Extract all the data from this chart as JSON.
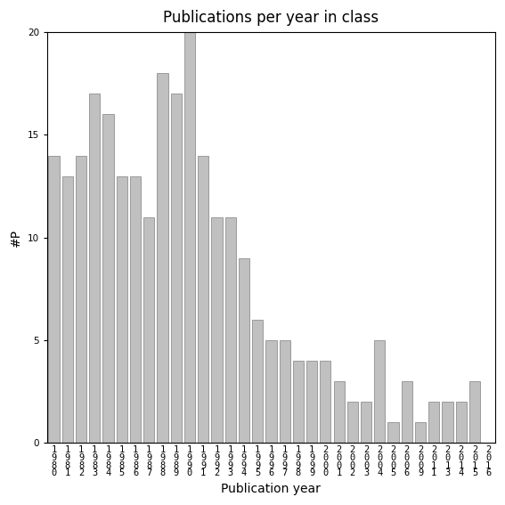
{
  "title": "Publications per year in class",
  "xlabel": "Publication year",
  "ylabel": "#P",
  "ylim": [
    0,
    20
  ],
  "yticks": [
    0,
    5,
    10,
    15,
    20
  ],
  "bar_color": "#c0c0c0",
  "bar_edge_color": "#808080",
  "years": [
    1980,
    1981,
    1982,
    1983,
    1984,
    1985,
    1986,
    1987,
    1988,
    1989,
    1990,
    1991,
    1992,
    1993,
    1994,
    1995,
    1996,
    1997,
    1998,
    1999,
    2000,
    2001,
    2002,
    2003,
    2004,
    2005,
    2006,
    2009,
    2011,
    2013,
    2014,
    2015,
    2016
  ],
  "values": [
    14,
    13,
    14,
    17,
    16,
    13,
    13,
    11,
    18,
    17,
    20,
    14,
    11,
    11,
    9,
    6,
    5,
    5,
    4,
    4,
    4,
    3,
    2,
    2,
    5,
    1,
    3,
    1,
    2,
    2,
    2,
    3,
    0
  ],
  "background_color": "#ffffff",
  "title_fontsize": 12,
  "label_fontsize": 10,
  "tick_fontsize": 7.5
}
